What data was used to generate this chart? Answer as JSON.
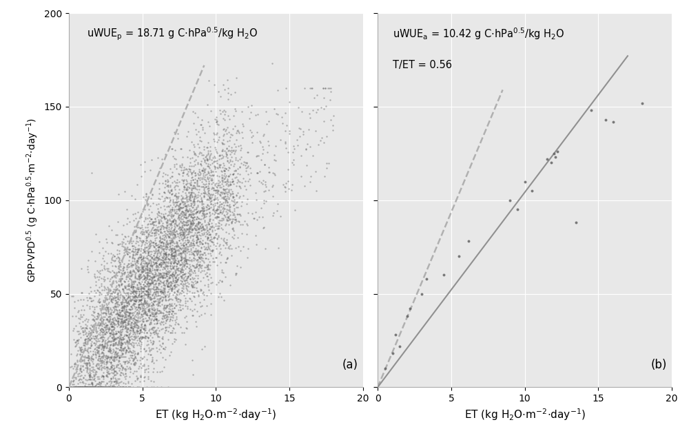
{
  "uwue_p": 18.71,
  "uwue_a": 10.42,
  "t_et_ratio": 0.56,
  "scatter_color": "#646464",
  "scatter_alpha_a": 0.45,
  "scatter_size_a": 3,
  "scatter_size_b": 8,
  "line_dashed_color": "#b0b0b0",
  "line_solid_color": "#909090",
  "bg_color": "#e8e8e8",
  "xlim": [
    0,
    20
  ],
  "ylim_a": [
    0,
    200
  ],
  "ylim_b": [
    0,
    200
  ],
  "xticks": [
    0,
    5,
    10,
    15,
    20
  ],
  "yticks_a": [
    0,
    50,
    100,
    150,
    200
  ],
  "seed": 42,
  "n_points": 4000,
  "b_scatter_x": [
    0.5,
    1.0,
    1.2,
    1.5,
    2.0,
    2.2,
    3.0,
    3.3,
    4.5,
    5.5,
    6.2,
    9.0,
    9.5,
    10.0,
    10.5,
    11.5,
    11.8,
    12.0,
    12.1,
    12.2,
    13.5,
    14.5,
    15.5,
    16.0,
    18.0
  ],
  "b_scatter_y": [
    10,
    18,
    28,
    22,
    38,
    42,
    50,
    58,
    60,
    70,
    78,
    100,
    95,
    110,
    105,
    122,
    120,
    125,
    123,
    126,
    88,
    148,
    143,
    142,
    152
  ]
}
